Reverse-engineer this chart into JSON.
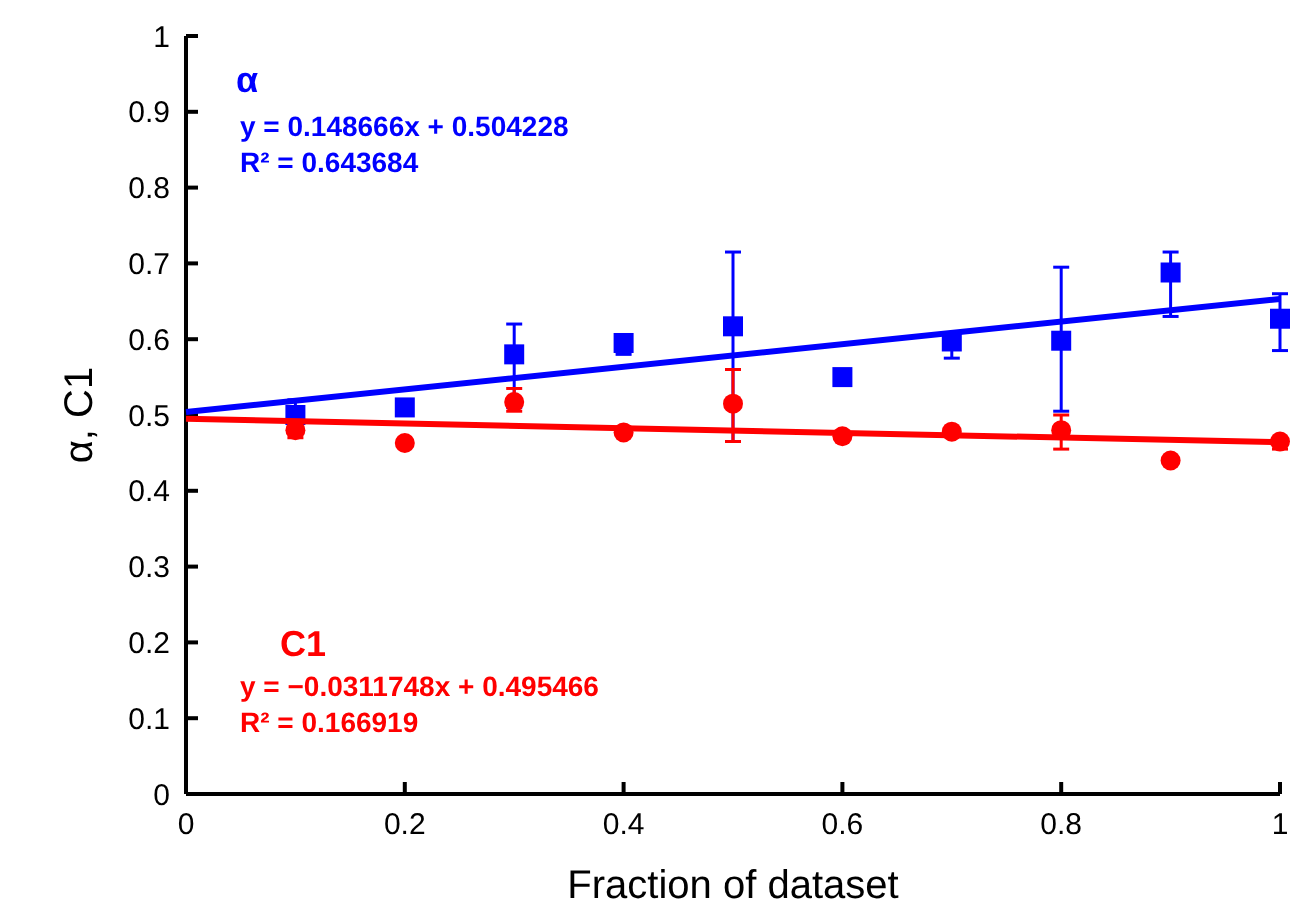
{
  "chart_data": {
    "type": "scatter",
    "xlabel": "Fraction of dataset",
    "ylabel": "α, C1",
    "xlim": [
      0,
      1
    ],
    "ylim": [
      0,
      1
    ],
    "xticks": [
      0,
      0.2,
      0.4,
      0.6,
      0.8,
      1
    ],
    "yticks": [
      0,
      0.1,
      0.2,
      0.3,
      0.4,
      0.5,
      0.6,
      0.7,
      0.8,
      0.9,
      1
    ],
    "grid": false,
    "series": [
      {
        "name": "α",
        "color": "#0000ff",
        "marker": "square",
        "x": [
          0.1,
          0.2,
          0.3,
          0.4,
          0.5,
          0.6,
          0.7,
          0.8,
          0.9,
          1
        ],
        "values": [
          0.5,
          0.51,
          0.58,
          0.595,
          0.617,
          0.55,
          0.597,
          0.598,
          0.688,
          0.627
        ],
        "errors": [
          [
            0.49,
            0.52
          ],
          null,
          [
            0.51,
            0.62
          ],
          [
            0.58,
            0.605
          ],
          [
            0.465,
            0.715
          ],
          [
            0.54,
            0.555
          ],
          [
            0.575,
            0.605
          ],
          [
            0.505,
            0.695
          ],
          [
            0.63,
            0.715
          ],
          [
            0.585,
            0.66
          ]
        ]
      },
      {
        "name": "C1",
        "color": "#ff0000",
        "marker": "circle",
        "x": [
          0.1,
          0.2,
          0.3,
          0.4,
          0.5,
          0.6,
          0.7,
          0.8,
          0.9,
          1
        ],
        "values": [
          0.48,
          0.463,
          0.517,
          0.477,
          0.515,
          0.472,
          0.478,
          0.48,
          0.44,
          0.465
        ],
        "errors": [
          [
            0.47,
            0.49
          ],
          null,
          [
            0.505,
            0.535
          ],
          null,
          [
            0.465,
            0.56
          ],
          null,
          null,
          [
            0.455,
            0.5
          ],
          null,
          [
            0.455,
            0.47
          ]
        ]
      },
      {
        "type": "line",
        "color": "#0000ff",
        "marker": "none",
        "x": [
          0,
          1
        ],
        "values": [
          0.504,
          0.653
        ]
      },
      {
        "type": "line",
        "color": "#ff0000",
        "marker": "none",
        "x": [
          0,
          1
        ],
        "values": [
          0.495,
          0.464
        ]
      }
    ],
    "annotations": [
      "y = 0.148666x + 0.504228",
      "R² = 0.643684",
      "y = −0.0311748x + 0.495466",
      "R² = 0.166919"
    ]
  }
}
